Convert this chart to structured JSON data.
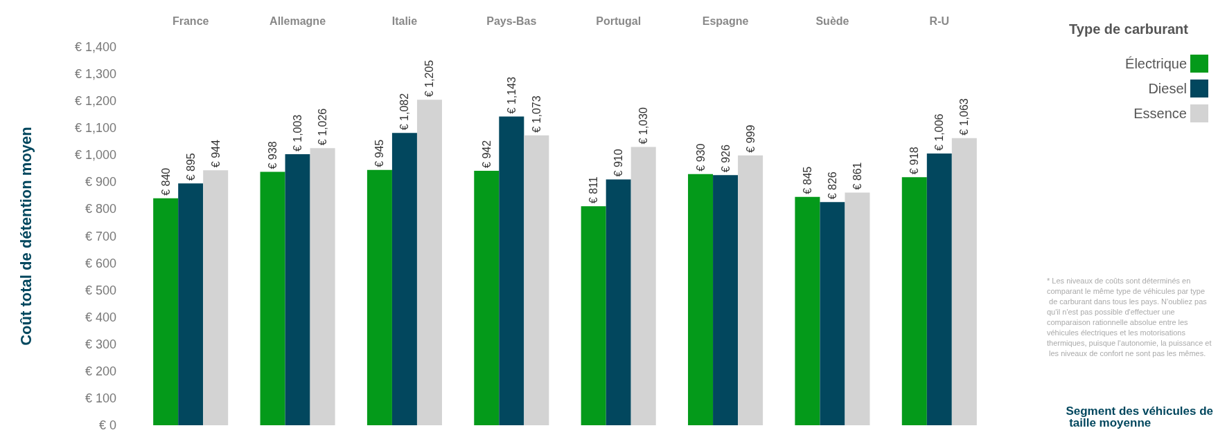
{
  "chart_data": {
    "type": "bar",
    "subtitle": "Segment des véhicules de taille moyenne",
    "ylabel": "Coût total de détention moyen",
    "legend_title": "Type de carburant",
    "legend": "top right",
    "grid": false,
    "categories": [
      "France",
      "Allemagne",
      "Italie",
      "Pays-Bas",
      "Portugal",
      "Espagne",
      "Suède",
      "R-U"
    ],
    "ylim": [
      0,
      1400
    ],
    "yticks": [
      {
        "value": 0,
        "label": "€ 0"
      },
      {
        "value": 100,
        "label": "€ 100"
      },
      {
        "value": 200,
        "label": "€ 200"
      },
      {
        "value": 300,
        "label": "€ 300"
      },
      {
        "value": 400,
        "label": "€ 400"
      },
      {
        "value": 500,
        "label": "€ 500"
      },
      {
        "value": 600,
        "label": "€ 600"
      },
      {
        "value": 700,
        "label": "€ 700"
      },
      {
        "value": 800,
        "label": "€ 800"
      },
      {
        "value": 900,
        "label": "€ 900"
      },
      {
        "value": 1000,
        "label": "€ 1,000"
      },
      {
        "value": 1100,
        "label": "€ 1,100"
      },
      {
        "value": 1200,
        "label": "€ 1,200"
      },
      {
        "value": 1300,
        "label": "€ 1,300"
      },
      {
        "value": 1400,
        "label": "€ 1,400"
      }
    ],
    "series": [
      {
        "name": "Électrique",
        "color": "#049a1a",
        "values": [
          840,
          938,
          945,
          942,
          811,
          930,
          845,
          918
        ],
        "value_labels": [
          "€ 840",
          "€ 938",
          "€ 945",
          "€ 942",
          "€ 811",
          "€ 930",
          "€ 845",
          "€ 918"
        ]
      },
      {
        "name": "Diesel",
        "color": "#02475e",
        "values": [
          895,
          1003,
          1082,
          1143,
          910,
          926,
          826,
          1006
        ],
        "value_labels": [
          "€ 895",
          "€ 1,003",
          "€ 1,082",
          "€ 1,143",
          "€ 910",
          "€ 926",
          "€ 826",
          "€ 1,006"
        ]
      },
      {
        "name": "Essence",
        "color": "#d3d3d3",
        "values": [
          944,
          1026,
          1205,
          1073,
          1030,
          999,
          861,
          1063
        ],
        "value_labels": [
          "€ 944",
          "€ 1,026",
          "€ 1,205",
          "€ 1,073",
          "€ 1,030",
          "€ 999",
          "€ 861",
          "€ 1,063"
        ]
      }
    ],
    "annotations": [
      "* Les niveaux de coûts sont déterminés en comparant le même type de véhicules par type de carburant dans tous les pays. N'oubliez pas qu'il n'est pas possible d'effectuer une comparaison rationnelle absolue entre les véhicules électriques et les motorisations thermiques, puisque l'autonomie, la puissance et les niveaux de confort ne sont pas les mêmes."
    ]
  }
}
